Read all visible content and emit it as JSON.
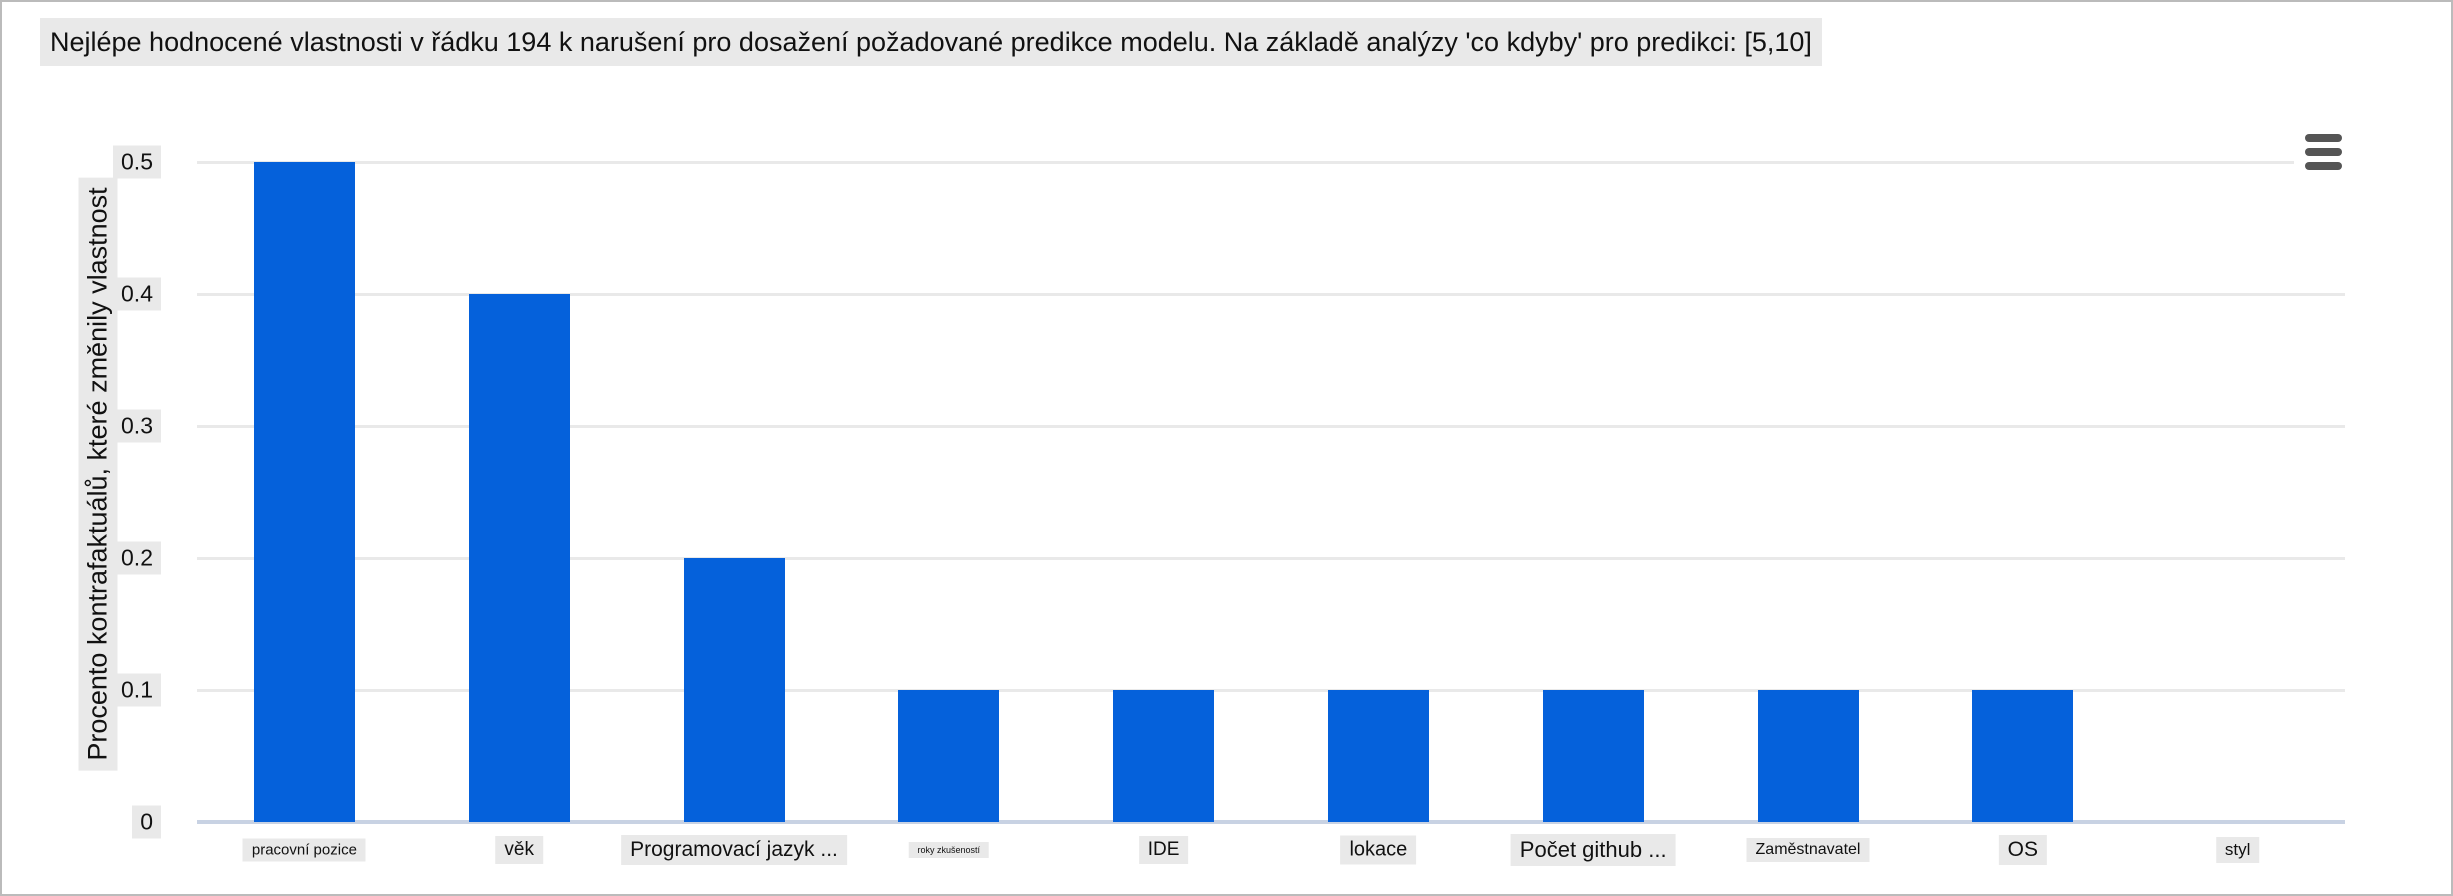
{
  "chart_data": {
    "type": "bar",
    "title": "Nejlépe hodnocené vlastnosti v řádku 194 k narušení pro dosažení požadované predikce modelu. Na základě analýzy 'co kdyby' pro predikci: [5,10]",
    "ylabel": "Procento kontrafaktuálů, které změnily vlastnost",
    "xlabel": "",
    "categories": [
      "pracovní pozice",
      "věk",
      "Programovací jazyk ...",
      "roky zkušeností",
      "IDE",
      "lokace",
      "Počet github ...",
      "Zaměstnavatel",
      "OS",
      "styl"
    ],
    "values": [
      0.5,
      0.4,
      0.2,
      0.1,
      0.1,
      0.1,
      0.1,
      0.1,
      0.1,
      0
    ],
    "ylim": [
      0,
      0.5
    ],
    "yticks": [
      0,
      0.1,
      0.2,
      0.3,
      0.4,
      0.5
    ],
    "grid": true,
    "legend": false,
    "orientation": "vertical",
    "tick_font_sizes": [
      15,
      19,
      21,
      9,
      19,
      20,
      22,
      16,
      21,
      17
    ]
  },
  "colors": {
    "bar": "#0561db",
    "grid": "#e9e9e9",
    "axis_line": "#c8d2e3",
    "label_bg": "#e9e9e9",
    "menu_icon": "#555555",
    "text": "#111111",
    "page_border": "#bbbbbb",
    "background": "#ffffff"
  },
  "menu": {
    "icon": "hamburger-menu"
  }
}
